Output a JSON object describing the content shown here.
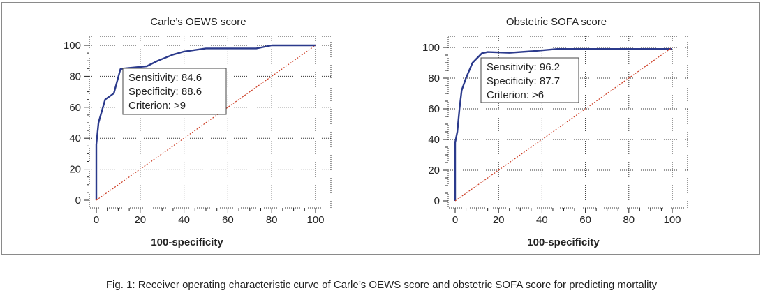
{
  "caption": "Fig. 1: Receiver operating characteristic curve of Carle’s OEWS score and obstetric SOFA score for predicting mortality",
  "colors": {
    "curve": "#2b3a8c",
    "reference": "#cc3b22",
    "grid": "#333333"
  },
  "chart_data": [
    {
      "type": "line",
      "title": "Carle’s OEWS score",
      "xlabel": "100-specificity",
      "ylabel": "",
      "xlim": [
        0,
        100
      ],
      "ylim": [
        0,
        100
      ],
      "xticks": [
        0,
        20,
        40,
        60,
        80,
        100
      ],
      "yticks": [
        0,
        20,
        40,
        60,
        80,
        100
      ],
      "grid": "dotted",
      "series": [
        {
          "role": "roc-curve",
          "x": [
            0,
            0,
            1,
            4,
            8,
            11,
            12,
            23,
            28,
            35,
            40,
            50,
            60,
            73,
            80,
            100
          ],
          "y": [
            0,
            36,
            50,
            65,
            69,
            84.6,
            85,
            86.5,
            90,
            94,
            96,
            98,
            98,
            98,
            100,
            100
          ]
        },
        {
          "role": "reference-diagonal",
          "x": [
            0,
            100
          ],
          "y": [
            0,
            100
          ]
        }
      ],
      "annotation": {
        "lines": [
          "Sensitivity: 84.6",
          "Specificity: 88.6",
          "Criterion: >9"
        ]
      }
    },
    {
      "type": "line",
      "title": "Obstetric SOFA score",
      "xlabel": "100-specificity",
      "ylabel": "",
      "xlim": [
        0,
        100
      ],
      "ylim": [
        0,
        100
      ],
      "xticks": [
        0,
        20,
        40,
        60,
        80,
        100
      ],
      "yticks": [
        0,
        20,
        40,
        60,
        80,
        100
      ],
      "grid": "dotted",
      "series": [
        {
          "role": "roc-curve",
          "x": [
            0,
            0,
            1,
            2,
            3,
            5,
            8,
            12.3,
            15,
            25,
            35,
            47,
            100
          ],
          "y": [
            0,
            38,
            45,
            60,
            72,
            80,
            90,
            96.2,
            97,
            96.5,
            97.5,
            99,
            99
          ]
        },
        {
          "role": "reference-diagonal",
          "x": [
            0,
            100
          ],
          "y": [
            0,
            100
          ]
        }
      ],
      "annotation": {
        "lines": [
          "Sensitivity: 96.2",
          "Specificity: 87.7",
          "Criterion: >6"
        ]
      }
    }
  ]
}
